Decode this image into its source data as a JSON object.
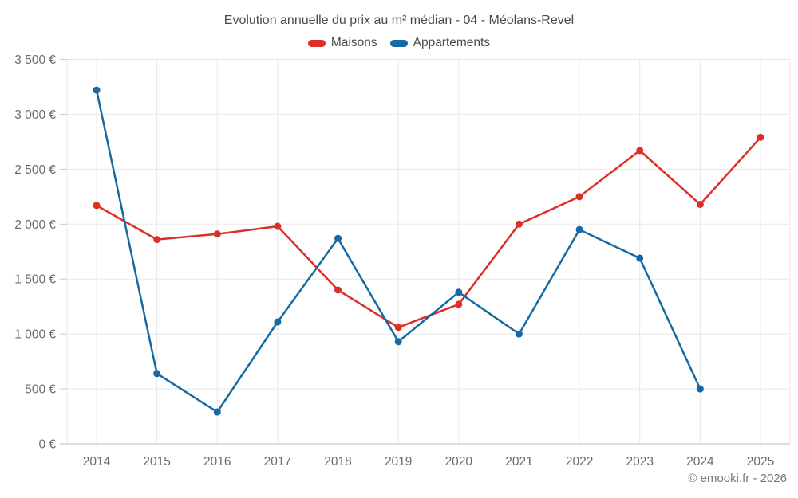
{
  "page": {
    "footer": "© emooki.fr - 2026"
  },
  "legend": {
    "items": [
      {
        "label": "Maisons",
        "color": "#db2f27"
      },
      {
        "label": "Appartements",
        "color": "#1769a3"
      }
    ]
  },
  "chart_data": {
    "type": "line",
    "title": "Evolution annuelle du prix au m² médian - 04 - Méolans-Revel",
    "x": [
      2014,
      2015,
      2016,
      2017,
      2018,
      2019,
      2020,
      2021,
      2022,
      2023,
      2024,
      2025
    ],
    "series": [
      {
        "name": "Maisons",
        "color": "#db2f27",
        "values": [
          2170,
          1860,
          1910,
          1980,
          1400,
          1060,
          1270,
          2000,
          2250,
          2670,
          2180,
          2790
        ]
      },
      {
        "name": "Appartements",
        "color": "#1769a3",
        "values": [
          3220,
          640,
          290,
          1110,
          1870,
          930,
          1380,
          1000,
          1950,
          1690,
          500,
          null
        ]
      }
    ],
    "ylim": [
      0,
      3500
    ],
    "ytick_step": 500,
    "ytick_labels": [
      "0 €",
      "500 €",
      "1 000 €",
      "1 500 €",
      "2 000 €",
      "2 500 €",
      "3 000 €",
      "3 500 €"
    ],
    "grid": true,
    "legend_position": "top",
    "marker": "circle",
    "ylabel": "",
    "xlabel": ""
  }
}
